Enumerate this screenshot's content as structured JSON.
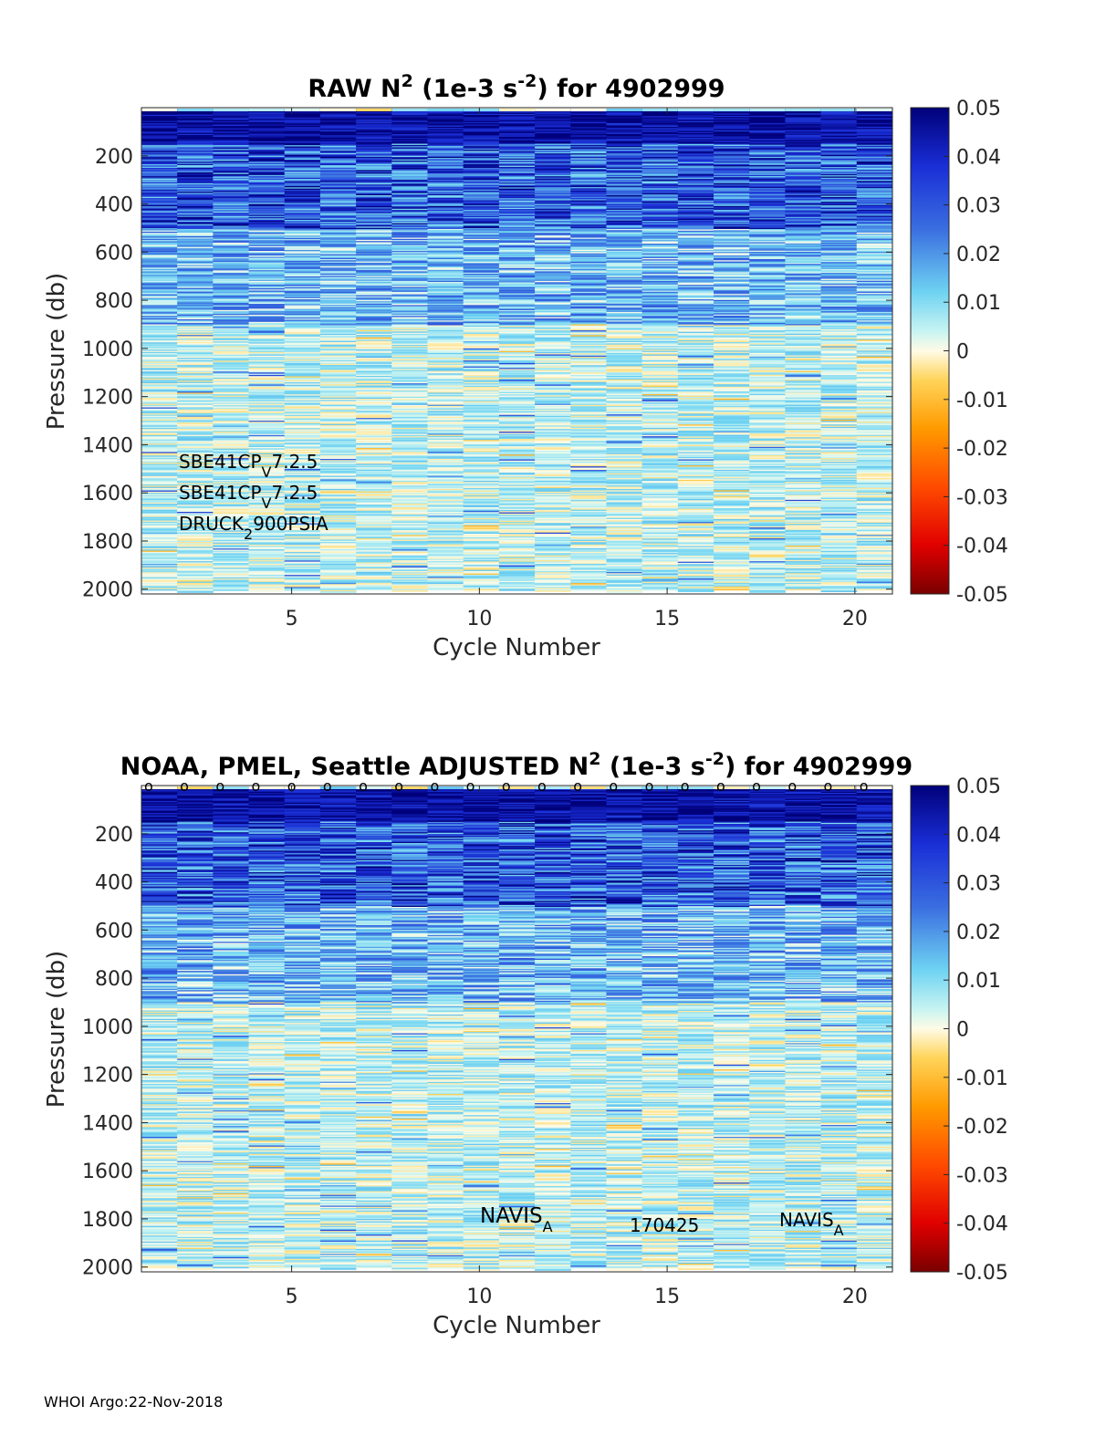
{
  "chart_data": [
    {
      "type": "heatmap",
      "title_parts": [
        "RAW N",
        "2",
        " (1e-3 s",
        "-2",
        ") for 4902999"
      ],
      "xlabel": "Cycle Number",
      "ylabel": "Pressure (db)",
      "xlim": [
        1,
        21
      ],
      "ylim": [
        0,
        2020
      ],
      "y_reversed": true,
      "xticks": [
        5,
        10,
        15,
        20
      ],
      "yticks": [
        200,
        400,
        600,
        800,
        1000,
        1200,
        1400,
        1600,
        1800,
        2000
      ],
      "colorbar": {
        "min": -0.05,
        "max": 0.05,
        "ticks": [
          "0.05",
          "0.04",
          "0.03",
          "0.02",
          "0.01",
          "0",
          "-0.01",
          "-0.02",
          "-0.03",
          "-0.04",
          "-0.05"
        ],
        "colormap": "jet-like diverging"
      },
      "cycles": [
        1,
        2,
        3,
        4,
        5,
        6,
        7,
        8,
        9,
        10,
        11,
        12,
        13,
        14,
        15,
        16,
        17,
        18,
        19,
        20,
        21
      ],
      "profile_summary": [
        {
          "pressure_range": [
            0,
            150
          ],
          "approx_N2": 0.05
        },
        {
          "pressure_range": [
            150,
            500
          ],
          "approx_N2": 0.03
        },
        {
          "pressure_range": [
            500,
            900
          ],
          "approx_N2": 0.015
        },
        {
          "pressure_range": [
            900,
            2000
          ],
          "approx_N2": 0.005
        }
      ],
      "annotations": [
        {
          "text": "SBE41CP",
          "sub": "V",
          "tail": "7.2.5"
        },
        {
          "text": "SBE41CP",
          "sub": "V",
          "tail": "7.2.5"
        },
        {
          "text": "DRUCK",
          "sub": "2",
          "tail": "900PSIA"
        }
      ]
    },
    {
      "type": "heatmap",
      "title_parts": [
        "NOAA, PMEL, Seattle  ADJUSTED N",
        "2",
        " (1e-3 s",
        "-2",
        ") for 4902999"
      ],
      "xlabel": "Cycle Number",
      "ylabel": "Pressure (db)",
      "xlim": [
        1,
        21
      ],
      "ylim": [
        0,
        2020
      ],
      "y_reversed": true,
      "xticks": [
        5,
        10,
        15,
        20
      ],
      "yticks": [
        200,
        400,
        600,
        800,
        1000,
        1200,
        1400,
        1600,
        1800,
        2000
      ],
      "colorbar": {
        "min": -0.05,
        "max": 0.05,
        "ticks": [
          "0.05",
          "0.04",
          "0.03",
          "0.02",
          "0.01",
          "0",
          "-0.01",
          "-0.02",
          "-0.03",
          "-0.04",
          "-0.05"
        ],
        "colormap": "jet-like diverging"
      },
      "cycles": [
        1,
        2,
        3,
        4,
        5,
        6,
        7,
        8,
        9,
        10,
        11,
        12,
        13,
        14,
        15,
        16,
        17,
        18,
        19,
        20,
        21
      ],
      "top_marker": "o",
      "profile_summary": [
        {
          "pressure_range": [
            0,
            150
          ],
          "approx_N2": 0.05
        },
        {
          "pressure_range": [
            150,
            500
          ],
          "approx_N2": 0.03
        },
        {
          "pressure_range": [
            500,
            900
          ],
          "approx_N2": 0.015
        },
        {
          "pressure_range": [
            900,
            2000
          ],
          "approx_N2": 0.005
        }
      ],
      "annotations": [
        {
          "text": "NAVIS",
          "sub": "A",
          "tail": ""
        },
        {
          "text": "170425",
          "sub": "",
          "tail": ""
        },
        {
          "text": "NAVIS",
          "sub": "A",
          "tail": ""
        }
      ]
    }
  ],
  "footer": "WHOI Argo:22-Nov-2018"
}
